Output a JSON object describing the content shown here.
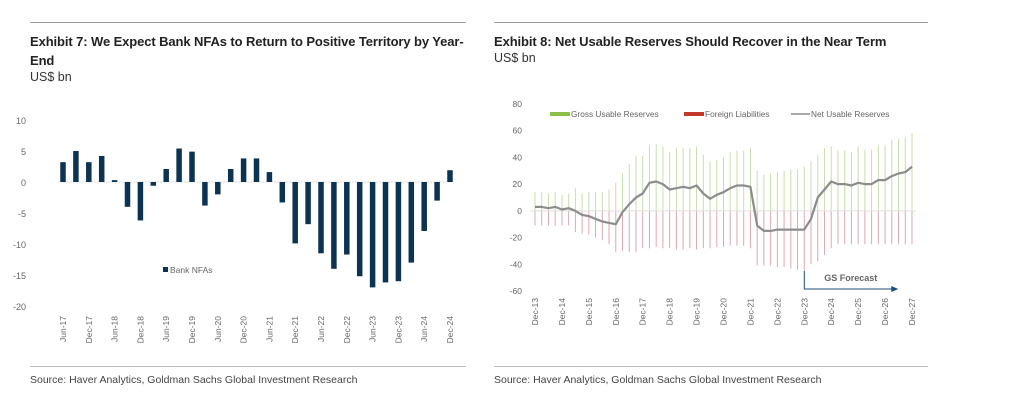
{
  "panels": [
    {
      "title": "Exhibit 7: We Expect Bank NFAs to Return to Positive Territory by Year-End",
      "units": "US$ bn",
      "source": "Source: Haver Analytics, Goldman Sachs Global Investment Research"
    },
    {
      "title": "Exhibit 8: Net Usable Reserves Should Recover in the Near Term",
      "units": "US$ bn",
      "source": "Source: Haver Analytics, Goldman Sachs Global Investment Research"
    }
  ],
  "chart_data": [
    {
      "type": "bar",
      "title": "Exhibit 7: We Expect Bank NFAs to Return to Positive Territory by Year-End",
      "ylabel": "US$ bn",
      "xlabel": "",
      "ylim": [
        -20,
        10
      ],
      "yticks": [
        10,
        5,
        0,
        -5,
        -10,
        -15,
        -20
      ],
      "grid": false,
      "legend_position": "bottom-center",
      "x_tick_labels": [
        "Jun-17",
        "Dec-17",
        "Jun-18",
        "Dec-18",
        "Jun-19",
        "Dec-19",
        "Jun-20",
        "Dec-20",
        "Jun-21",
        "Dec-21",
        "Jun-22",
        "Dec-22",
        "Jun-23",
        "Dec-23",
        "Jun-24",
        "Dec-24"
      ],
      "colors": {
        "bar": "#0d3352",
        "zero_line": "#d9d9d9"
      },
      "series": [
        {
          "name": "Bank NFAs",
          "values": [
            3.2,
            5.0,
            3.2,
            4.2,
            0.3,
            -4.0,
            -6.2,
            -0.6,
            2.1,
            5.4,
            4.9,
            -3.8,
            -2.0,
            2.1,
            3.8,
            3.8,
            1.6,
            -3.3,
            -9.9,
            -6.8,
            -11.5,
            -14.0,
            -11.7,
            -15.2,
            -17.0,
            -16.2,
            -16.0,
            -13.0,
            -7.9,
            -3.0,
            1.9
          ]
        }
      ]
    },
    {
      "type": "bar",
      "title": "Exhibit 8: Net Usable Reserves Should Recover in the Near Term",
      "ylabel": "US$ bn",
      "xlabel": "",
      "ylim": [
        -60,
        80
      ],
      "yticks": [
        80,
        60,
        40,
        20,
        0,
        -20,
        -40,
        -60
      ],
      "grid": false,
      "legend_position": "top",
      "x_tick_labels": [
        "Dec-13",
        "Dec-14",
        "Dec-15",
        "Dec-16",
        "Dec-17",
        "Dec-18",
        "Dec-19",
        "Dec-20",
        "Dec-21",
        "Dec-22",
        "Dec-23",
        "Dec-24",
        "Dec-25",
        "Dec-26",
        "Dec-27"
      ],
      "annotation": {
        "text": "GS Forecast",
        "from": "Dec-23",
        "direction": "right"
      },
      "colors": {
        "gross": "#8dc04a",
        "foreign": "#c0392b",
        "net": "#8c8c8c",
        "arrow": "#1f4e79"
      },
      "series": [
        {
          "name": "Gross Usable  Reserves",
          "kind": "bar",
          "values": [
            14,
            14,
            13,
            14,
            12,
            13,
            17,
            13,
            14,
            14,
            14,
            16,
            21,
            28,
            35,
            41,
            41,
            49,
            50,
            48,
            44,
            47,
            47,
            47,
            48,
            42,
            37,
            38,
            40,
            44,
            45,
            45,
            47,
            30,
            27,
            28,
            29,
            30,
            31,
            31,
            33,
            37,
            42,
            47,
            48,
            45,
            45,
            44,
            48,
            46,
            46,
            49,
            49,
            53,
            54,
            55,
            58
          ]
        },
        {
          "name": "Foreign Liabilities",
          "kind": "bar",
          "values": [
            -11,
            -11,
            -11,
            -11,
            -11,
            -11,
            -16,
            -17,
            -18,
            -20,
            -22,
            -25,
            -31,
            -30,
            -31,
            -31,
            -28,
            -28,
            -27,
            -28,
            -28,
            -29,
            -29,
            -28,
            -29,
            -28,
            -28,
            -27,
            -27,
            -26,
            -26,
            -26,
            -28,
            -41,
            -41,
            -41,
            -42,
            -42,
            -43,
            -44,
            -45,
            -40,
            -38,
            -33,
            -28,
            -25,
            -25,
            -25,
            -25,
            -25,
            -25,
            -25,
            -25,
            -25,
            -25,
            -25,
            -25
          ]
        },
        {
          "name": "Net Usable Reserves",
          "kind": "line",
          "values": [
            3,
            3,
            2,
            3,
            1,
            2,
            0,
            -3,
            -4,
            -6,
            -8,
            -9,
            -10,
            -1,
            5,
            10,
            13,
            21,
            22,
            20,
            16,
            17,
            18,
            17,
            19,
            13,
            9,
            12,
            14,
            17,
            19,
            19,
            18,
            -11,
            -15,
            -15,
            -14,
            -14,
            -14,
            -14,
            -14,
            -6,
            10,
            16,
            22,
            20,
            20,
            19,
            21,
            20,
            20,
            23,
            23,
            26,
            28,
            29,
            33
          ]
        }
      ]
    }
  ]
}
